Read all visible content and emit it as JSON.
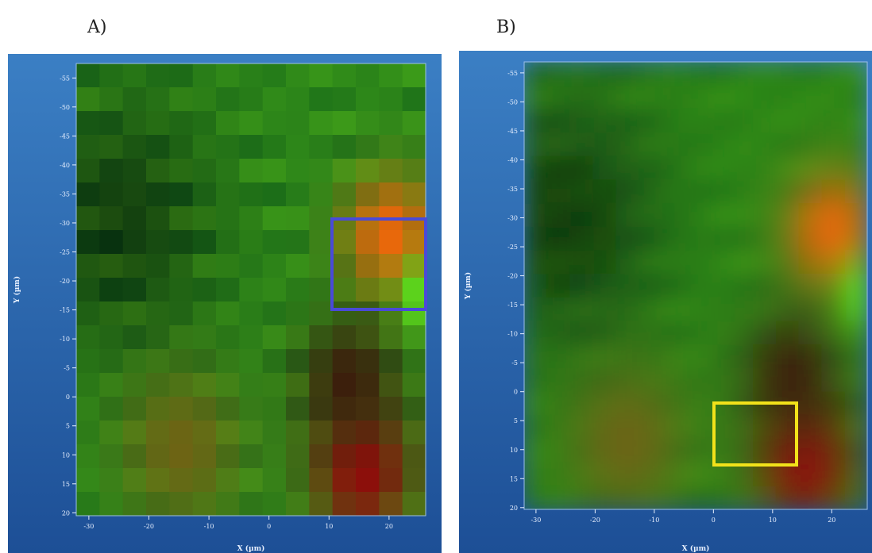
{
  "panels": [
    {
      "label": "A)",
      "x_label": "X (µm)",
      "y_label": "Y (µm)",
      "xlim": [
        -32.1,
        26.1
      ],
      "ylim": [
        -57.5,
        20.5
      ],
      "xticks": [
        -30,
        -20,
        -10,
        0,
        10,
        20
      ],
      "yticks": [
        -55,
        -50,
        -45,
        -40,
        -35,
        -30,
        -25,
        -20,
        -15,
        -10,
        -5,
        0,
        5,
        10,
        15,
        20
      ]
    },
    {
      "label": "B)",
      "x_label": "X (µm)",
      "y_label": "Y (µm)",
      "xlim": [
        -32,
        26
      ],
      "ylim": [
        -56.9,
        20.3
      ],
      "xticks": [
        -30,
        -20,
        -10,
        0,
        10,
        20
      ],
      "yticks": [
        -55,
        -50,
        -45,
        -40,
        -35,
        -30,
        -25,
        -20,
        -15,
        -10,
        -5,
        0,
        5,
        10,
        15,
        20
      ]
    }
  ]
}
